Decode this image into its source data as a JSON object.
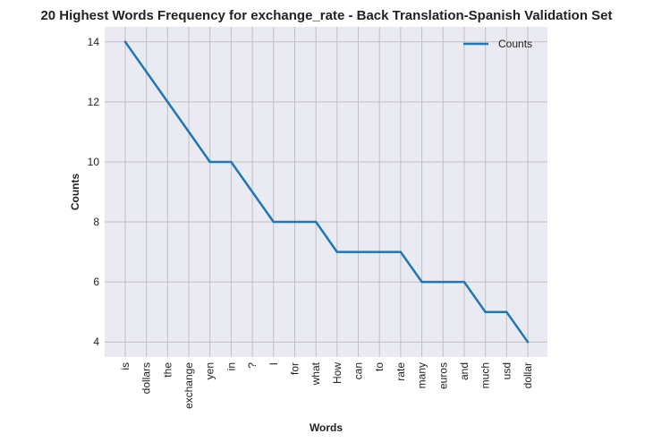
{
  "chart_data": {
    "type": "line",
    "title": "20 Highest Words Frequency for exchange_rate - Back Translation-Spanish Validation Set",
    "xlabel": "Words",
    "ylabel": "Counts",
    "categories": [
      "is",
      "dollars",
      "the",
      "exchange",
      "yen",
      "in",
      "?",
      "I",
      "for",
      "what",
      "How",
      "can",
      "to",
      "rate",
      "many",
      "euros",
      "and",
      "much",
      "usd",
      "dollar"
    ],
    "series": [
      {
        "name": "Counts",
        "values": [
          14,
          13,
          12,
          11,
          10,
          10,
          9,
          8,
          8,
          8,
          7,
          7,
          7,
          7,
          6,
          6,
          6,
          5,
          5,
          4
        ]
      }
    ],
    "ylim": [
      3.5,
      14.5
    ],
    "yticks": [
      4,
      6,
      8,
      10,
      12,
      14
    ],
    "grid": true,
    "legend_position": "top-right",
    "colors": {
      "line": "#1f77b4",
      "background": "#eaeaf2",
      "grid": "#c0c0c0"
    }
  }
}
